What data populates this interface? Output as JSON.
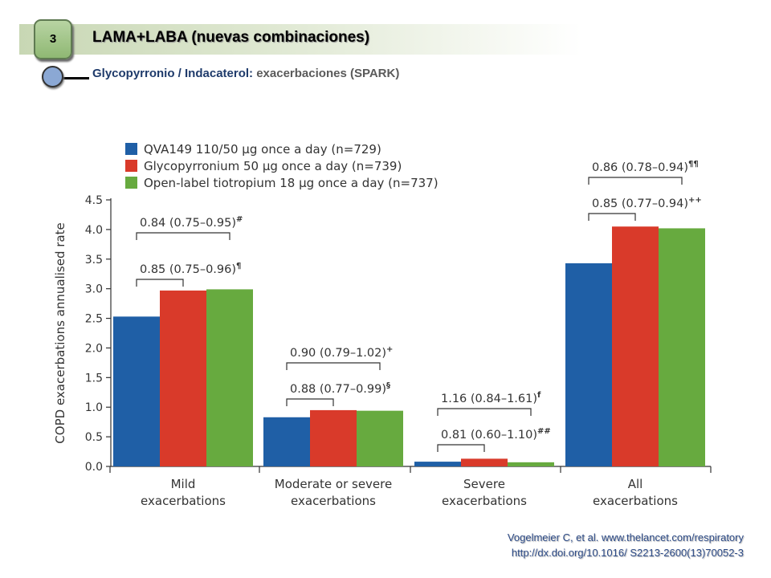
{
  "slide": {
    "number": "3",
    "title": "LAMA+LABA (nuevas combinaciones)",
    "subtitle_bold": "Glycopyrronio / Indacaterol:",
    "subtitle_rest": " exacerbaciones (SPARK)"
  },
  "citation": {
    "line1": "Vogelmeier C, et al. www.thelancet.com/respiratory",
    "line2": "http://dx.doi.org/10.1016/ S2213-2600(13)70052-3"
  },
  "colors": {
    "blue": "#1f5fa6",
    "red": "#d93a2a",
    "green": "#67aa3f",
    "axis": "#333333"
  },
  "chart_data": {
    "type": "bar",
    "ylabel": "COPD exacerbations annualised rate",
    "ylim": [
      0,
      4.5
    ],
    "yticks": [
      "0.0",
      "0.5",
      "1.0",
      "1.5",
      "2.0",
      "2.5",
      "3.0",
      "3.5",
      "4.0",
      "4.5"
    ],
    "grid": false,
    "legend_position": "top-left",
    "categories": [
      [
        "Mild",
        "exacerbations"
      ],
      [
        "Moderate or severe",
        "exacerbations"
      ],
      [
        "Severe",
        "exacerbations"
      ],
      [
        "All",
        "exacerbations"
      ]
    ],
    "series": [
      {
        "name": "QVA149 110/50 µg once a day (n=729)",
        "color": "#1f5fa6",
        "values": [
          2.53,
          0.83,
          0.08,
          3.43
        ]
      },
      {
        "name": "Glycopyrronium 50 µg once a day  (n=739)",
        "color": "#d93a2a",
        "values": [
          2.97,
          0.95,
          0.13,
          4.05
        ]
      },
      {
        "name": "Open-label tiotropium 18 µg once a day (n=737)",
        "color": "#67aa3f",
        "values": [
          2.99,
          0.94,
          0.07,
          4.02
        ]
      }
    ],
    "annotations": [
      {
        "category": 0,
        "label": "0.85 (0.75–0.96)",
        "mark": "¶",
        "from": 0,
        "to": 1,
        "level": 1
      },
      {
        "category": 0,
        "label": "0.84 (0.75–0.95)",
        "mark": "#",
        "from": 0,
        "to": 2,
        "level": 2
      },
      {
        "category": 1,
        "label": "0.88 (0.77–0.99)",
        "mark": "§",
        "from": 0,
        "to": 1,
        "level": 1
      },
      {
        "category": 1,
        "label": "0.90 (0.79–1.02)",
        "mark": "+",
        "from": 0,
        "to": 2,
        "level": 2
      },
      {
        "category": 2,
        "label": "0.81 (0.60–1.10)",
        "mark": "##",
        "from": 0,
        "to": 1,
        "level": 1
      },
      {
        "category": 2,
        "label": "1.16 (0.84–1.61)",
        "mark": "f",
        "from": 0,
        "to": 2,
        "level": 2
      },
      {
        "category": 3,
        "label": "0.85 (0.77–0.94)",
        "mark": "++",
        "from": 0,
        "to": 1,
        "level": 1
      },
      {
        "category": 3,
        "label": "0.86 (0.78–0.94)",
        "mark": "¶¶",
        "from": 0,
        "to": 2,
        "level": 2
      }
    ]
  }
}
